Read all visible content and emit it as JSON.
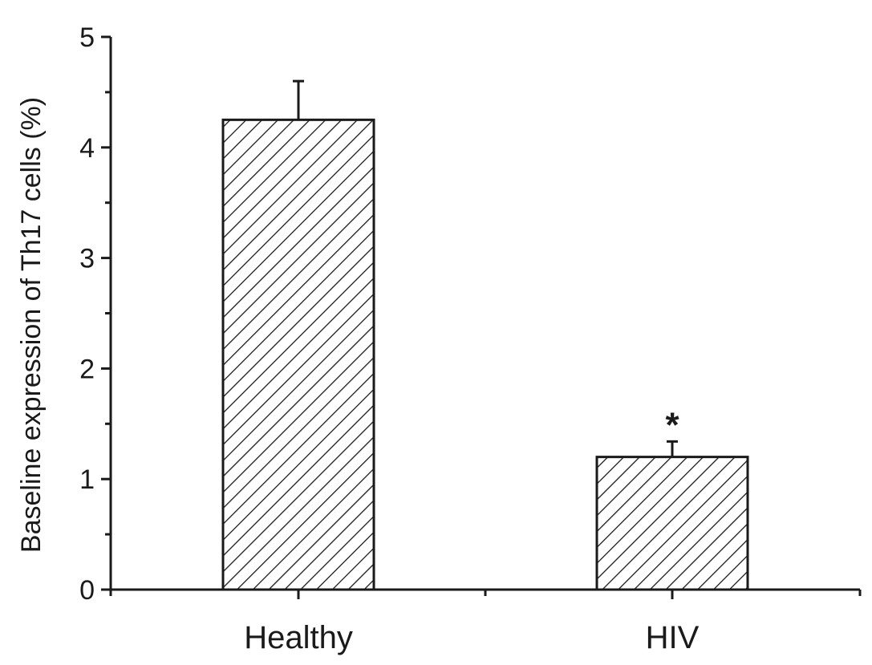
{
  "chart_data": {
    "type": "bar",
    "title": "",
    "xlabel": "",
    "ylabel": "Baseline expression of Th17 cells (%)",
    "categories": [
      "Healthy",
      "HIV"
    ],
    "values": [
      4.25,
      1.2
    ],
    "error_bars": [
      0.35,
      0.14
    ],
    "ylim": [
      0,
      5
    ],
    "yticks": [
      "0",
      "1",
      "2",
      "3",
      "4",
      "5"
    ],
    "annotations": [
      {
        "category": "HIV",
        "text": "*"
      }
    ],
    "grid": false,
    "legend": "none",
    "fill_pattern": "diagonal-hatch",
    "bar_color": "#ffffff",
    "line_color": "#1a1a1a"
  }
}
